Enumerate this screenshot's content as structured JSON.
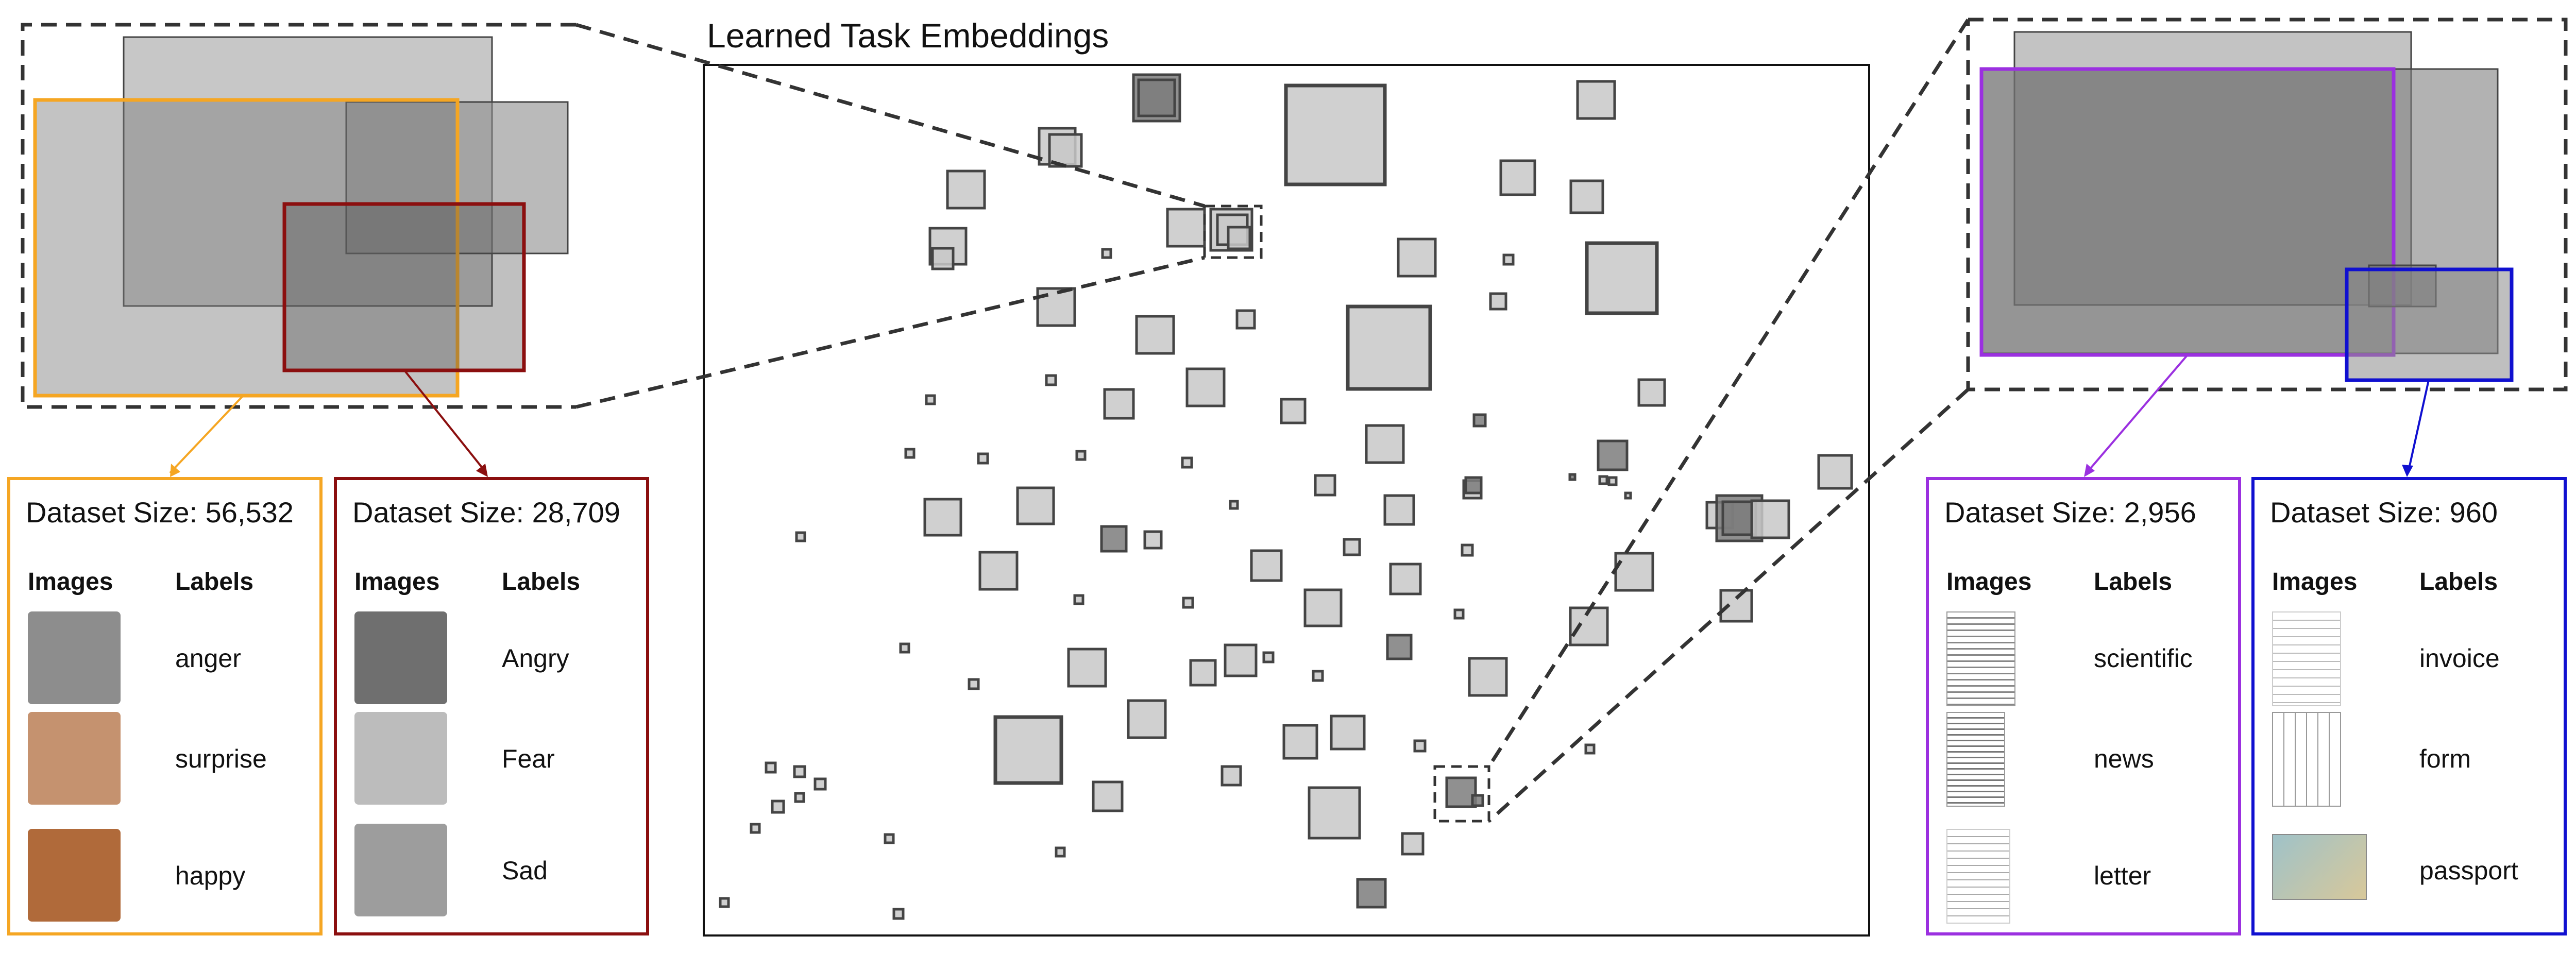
{
  "title": "Learned Task Embeddings",
  "colors": {
    "orange": "#F5A623",
    "darkred": "#8B0F0F",
    "purple": "#9B30E0",
    "blue": "#1010D0",
    "box_fill": "#c8c8c8",
    "box_stroke": "#444444"
  },
  "datasets": [
    {
      "title": "Dataset Size: 56,532",
      "images_header": "Images",
      "labels_header": "Labels",
      "rows": [
        {
          "label": "anger",
          "icon": "face-photo-icon"
        },
        {
          "label": "surprise",
          "icon": "face-photo-icon"
        },
        {
          "label": "happy",
          "icon": "face-photo-icon"
        }
      ]
    },
    {
      "title": "Dataset Size: 28,709",
      "images_header": "Images",
      "labels_header": "Labels",
      "rows": [
        {
          "label": "Angry",
          "icon": "face-photo-icon"
        },
        {
          "label": "Fear",
          "icon": "face-photo-icon"
        },
        {
          "label": "Sad",
          "icon": "face-photo-icon"
        }
      ]
    },
    {
      "title": "Dataset Size: 2,956",
      "images_header": "Images",
      "labels_header": "Labels",
      "rows": [
        {
          "label": "scientific",
          "icon": "document-page-icon"
        },
        {
          "label": "news",
          "icon": "document-page-icon"
        },
        {
          "label": "letter",
          "icon": "document-page-icon"
        }
      ]
    },
    {
      "title": "Dataset Size: 960",
      "images_header": "Images",
      "labels_header": "Labels",
      "rows": [
        {
          "label": "invoice",
          "icon": "document-page-icon"
        },
        {
          "label": "form",
          "icon": "document-page-icon"
        },
        {
          "label": "passport",
          "icon": "passport-icon"
        }
      ]
    }
  ]
}
